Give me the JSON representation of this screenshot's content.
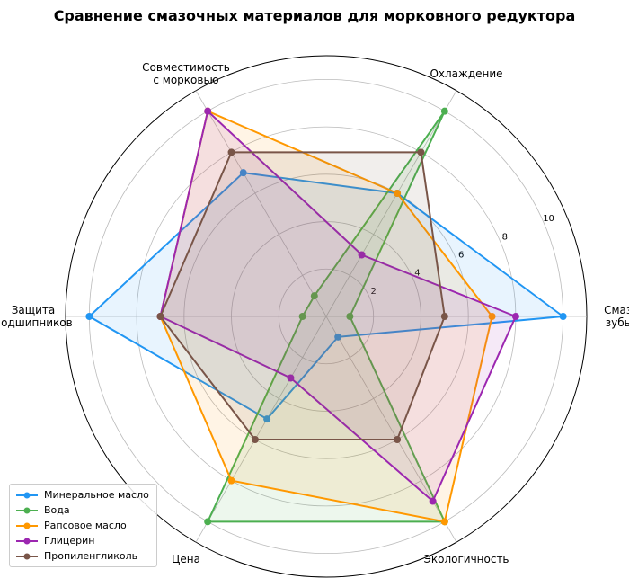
{
  "chart_data": {
    "type": "radar",
    "title": "Сравнение смазочных материалов для морковного редуктора",
    "categories": [
      "Смазка\nзубьев",
      "Охлаждение",
      "Совместимость\nс морковью",
      "Защита\nподшипников",
      "Цена",
      "Экологичность"
    ],
    "series": [
      {
        "name": "Минеральное масло",
        "color": "#2196f3",
        "values": [
          10,
          6,
          7,
          10,
          5,
          1
        ]
      },
      {
        "name": "Вода",
        "color": "#4caf50",
        "values": [
          1,
          10,
          1,
          1,
          10,
          10
        ]
      },
      {
        "name": "Рапсовое масло",
        "color": "#ff9800",
        "values": [
          7,
          6,
          10,
          7,
          8,
          10
        ]
      },
      {
        "name": "Глицерин",
        "color": "#9c27b0",
        "values": [
          8,
          3,
          10,
          7,
          3,
          9
        ]
      },
      {
        "name": "Пропиленгликоль",
        "color": "#795548",
        "values": [
          5,
          8,
          8,
          7,
          6,
          6
        ]
      }
    ],
    "ylim": [
      0,
      11
    ],
    "yticks": [
      2,
      4,
      6,
      8,
      10
    ],
    "grid": true,
    "legend": "lower left"
  }
}
